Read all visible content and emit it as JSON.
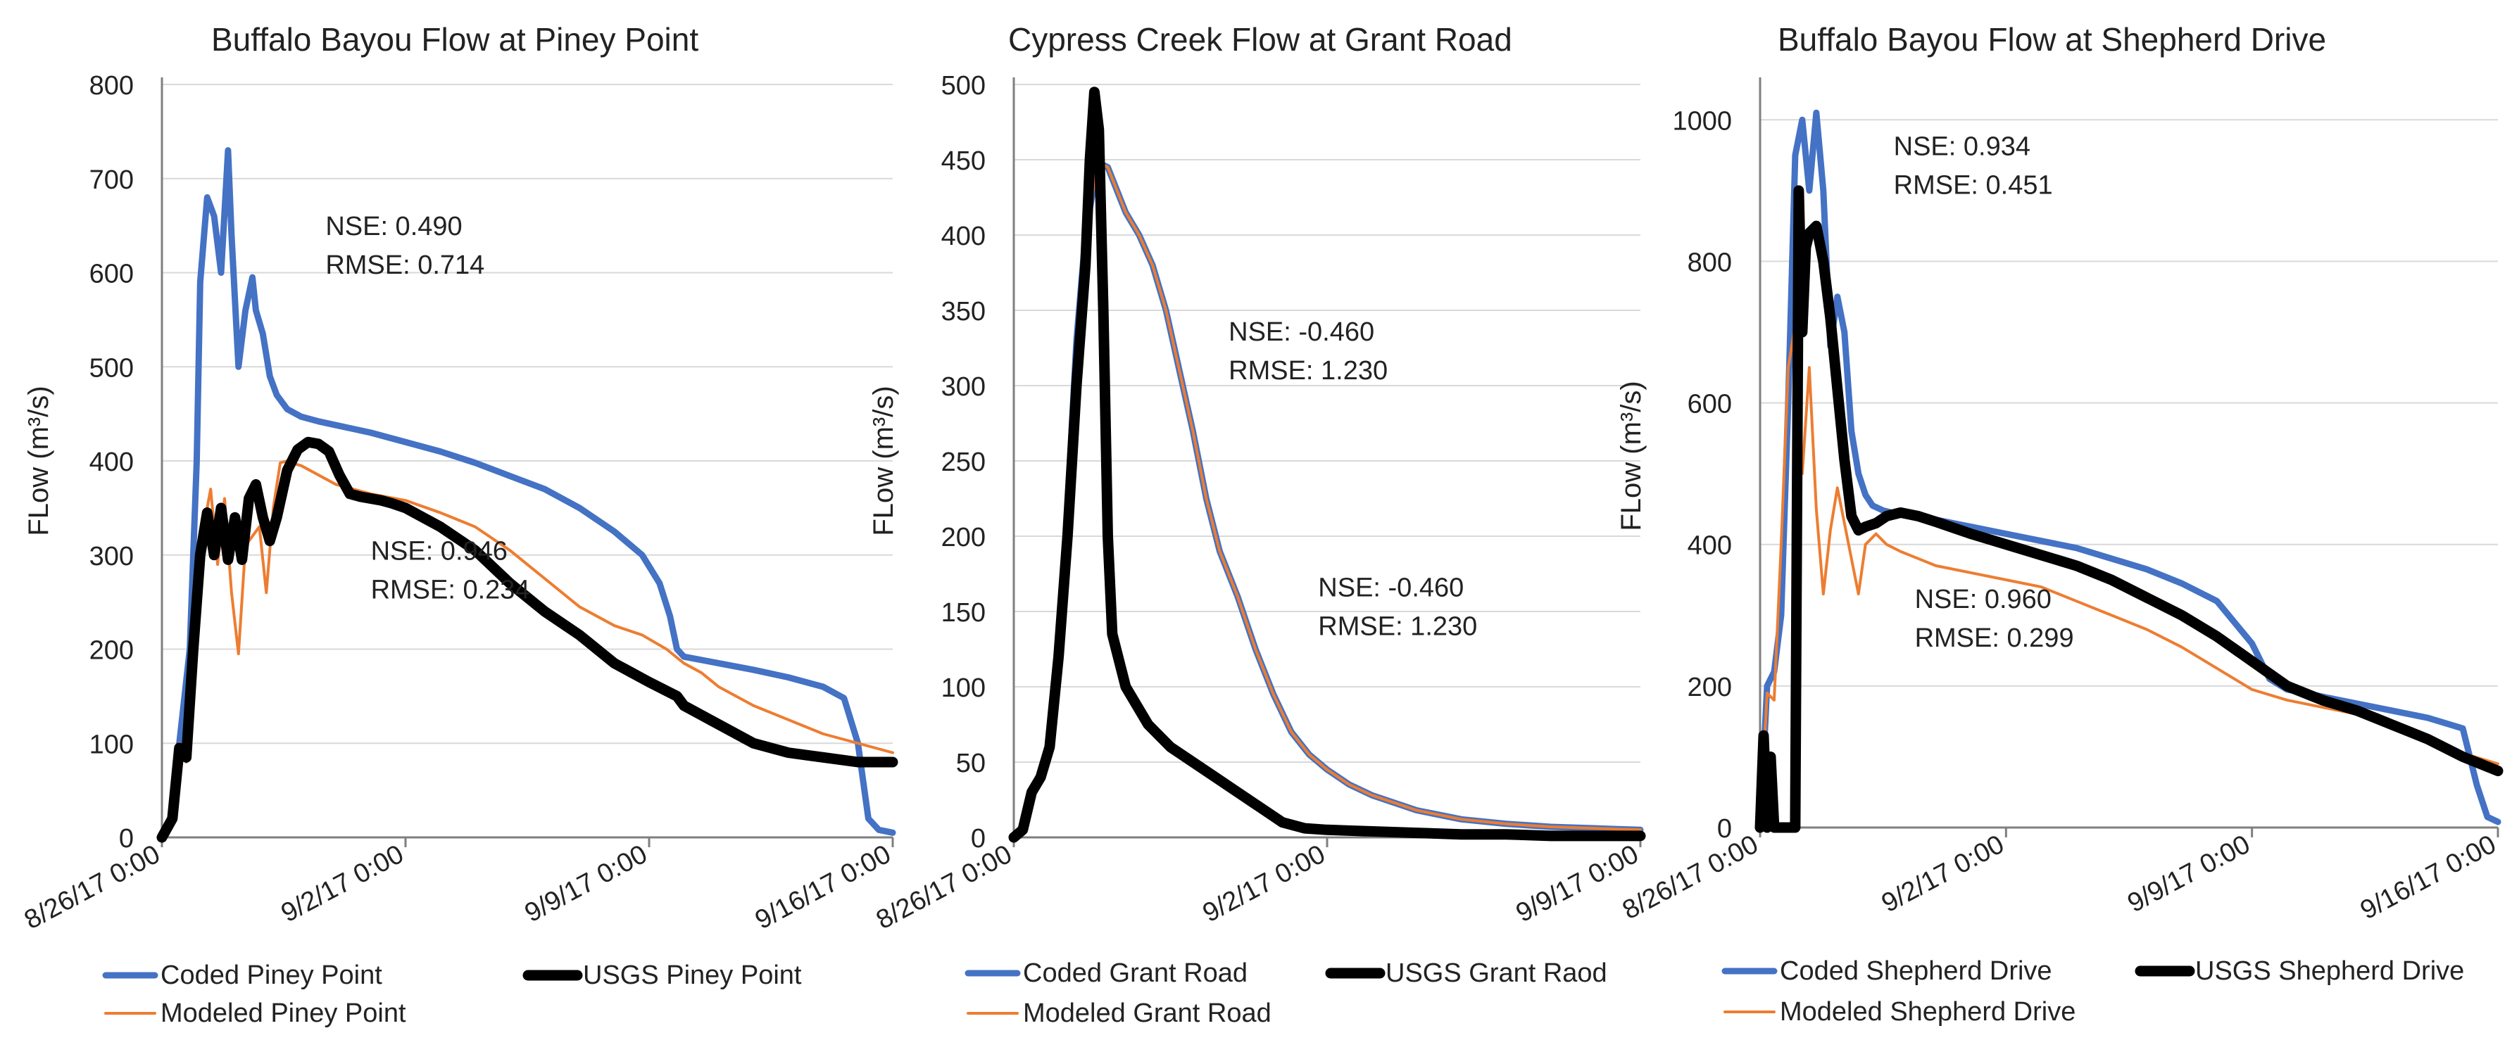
{
  "chart_data": [
    {
      "type": "line",
      "title": "Buffalo Bayou Flow at Piney Point",
      "ylabel": "FLow (m³/s)",
      "xlabel": "",
      "ylim": [
        0,
        800
      ],
      "yticks": [
        0,
        100,
        200,
        300,
        400,
        500,
        600,
        700,
        800
      ],
      "xlim": [
        "2017-08-26 00:00",
        "2017-09-16 00:00"
      ],
      "xticks": [
        "8/26/17 0:00",
        "9/2/17 0:00",
        "9/9/17 0:00",
        "9/16/17 0:00"
      ],
      "grid": "horizontal",
      "legend_position": "bottom",
      "annotations": [
        {
          "lines": [
            "NSE: 0.490",
            "RMSE: 0.714"
          ],
          "at": {
            "x": 4.7,
            "y": 640
          }
        },
        {
          "lines": [
            "NSE: 0.946",
            "RMSE: 0.234"
          ],
          "at": {
            "x": 6.0,
            "y": 295
          }
        }
      ],
      "series": [
        {
          "name": "Coded Piney Point",
          "color": "#4472c4",
          "x": [
            0,
            0.3,
            0.5,
            0.8,
            1.0,
            1.1,
            1.3,
            1.5,
            1.7,
            1.9,
            2.0,
            2.2,
            2.4,
            2.6,
            2.7,
            2.9,
            3.1,
            3.3,
            3.6,
            4.0,
            4.5,
            5.0,
            6.0,
            7.0,
            8.0,
            9.0,
            10.0,
            11.0,
            12.0,
            13.0,
            13.8,
            14.3,
            14.6,
            14.8,
            15.0,
            16.0,
            17.0,
            18.0,
            19.0,
            19.6,
            20.0,
            20.3,
            20.6,
            21.0
          ],
          "y": [
            0,
            20,
            100,
            200,
            400,
            590,
            680,
            660,
            600,
            730,
            640,
            500,
            560,
            595,
            560,
            535,
            490,
            470,
            455,
            447,
            442,
            438,
            430,
            420,
            410,
            398,
            384,
            370,
            350,
            325,
            300,
            270,
            235,
            200,
            192,
            185,
            178,
            170,
            160,
            148,
            100,
            20,
            8,
            5
          ]
        },
        {
          "name": "USGS Piney Point",
          "color": "#000000",
          "x": [
            0,
            0.3,
            0.5,
            0.7,
            0.9,
            1.1,
            1.3,
            1.5,
            1.7,
            1.9,
            2.1,
            2.3,
            2.5,
            2.7,
            2.9,
            3.1,
            3.3,
            3.6,
            3.9,
            4.2,
            4.5,
            4.8,
            5.1,
            5.4,
            5.7,
            6.0,
            6.3,
            6.6,
            7.0,
            7.5,
            8.0,
            9.0,
            10.0,
            11.0,
            12.0,
            13.0,
            14.0,
            14.8,
            15.0,
            16.0,
            17.0,
            18.0,
            19.0,
            20.0,
            21.0
          ],
          "y": [
            0,
            20,
            95,
            85,
            200,
            300,
            345,
            300,
            350,
            295,
            340,
            295,
            360,
            375,
            340,
            315,
            340,
            390,
            412,
            420,
            418,
            410,
            385,
            365,
            362,
            360,
            358,
            355,
            350,
            340,
            330,
            305,
            270,
            240,
            215,
            185,
            165,
            150,
            140,
            120,
            100,
            90,
            85,
            80,
            80
          ]
        },
        {
          "name": "Modeled Piney Point",
          "color": "#ed7d31",
          "x": [
            0,
            0.3,
            0.5,
            0.7,
            0.9,
            1.1,
            1.2,
            1.4,
            1.6,
            1.8,
            2.0,
            2.2,
            2.4,
            2.6,
            2.8,
            3.0,
            3.2,
            3.4,
            3.6,
            3.8,
            4.0,
            4.5,
            5.0,
            6.0,
            7.0,
            8.0,
            9.0,
            10.0,
            11.0,
            12.0,
            13.0,
            13.8,
            14.5,
            15.0,
            15.5,
            16.0,
            17.0,
            18.0,
            19.0,
            20.0,
            21.0
          ],
          "y": [
            0,
            30,
            100,
            80,
            170,
            310,
            330,
            370,
            290,
            360,
            260,
            195,
            310,
            320,
            330,
            260,
            350,
            398,
            400,
            397,
            395,
            385,
            375,
            365,
            358,
            345,
            330,
            305,
            275,
            245,
            225,
            215,
            200,
            185,
            175,
            160,
            140,
            125,
            110,
            100,
            90
          ]
        }
      ],
      "legend": [
        {
          "label": "Coded Piney Point",
          "color": "#4472c4",
          "weight": "medium"
        },
        {
          "label": "USGS Piney Point",
          "color": "#000000",
          "weight": "heavy"
        },
        {
          "label": "Modeled Piney Point",
          "color": "#ed7d31",
          "weight": "thin"
        }
      ]
    },
    {
      "type": "line",
      "title": "Cypress Creek Flow at Grant Road",
      "ylabel": "FLow (m³/s)",
      "xlabel": "",
      "ylim": [
        0,
        500
      ],
      "yticks": [
        0,
        50,
        100,
        150,
        200,
        250,
        300,
        350,
        400,
        450,
        500
      ],
      "xlim": [
        "2017-08-26 00:00",
        "2017-09-09 00:00"
      ],
      "xticks": [
        "8/26/17 0:00",
        "9/2/17 0:00",
        "9/9/17 0:00"
      ],
      "grid": "horizontal",
      "legend_position": "bottom",
      "annotations": [
        {
          "lines": [
            "NSE: -0.460",
            "RMSE: 1.230"
          ],
          "at": {
            "x": 4.8,
            "y": 330
          }
        },
        {
          "lines": [
            "NSE: -0.460",
            "RMSE: 1.230"
          ],
          "at": {
            "x": 6.8,
            "y": 160
          }
        }
      ],
      "series": [
        {
          "name": "Coded Grant Road",
          "color": "#4472c4",
          "x": [
            0,
            0.2,
            0.4,
            0.6,
            0.8,
            1.0,
            1.2,
            1.4,
            1.6,
            1.8,
            1.9,
            2.1,
            2.3,
            2.5,
            2.8,
            3.1,
            3.4,
            3.7,
            4.0,
            4.3,
            4.6,
            5.0,
            5.4,
            5.8,
            6.2,
            6.6,
            7.0,
            7.5,
            8.0,
            9.0,
            10.0,
            11.0,
            12.0,
            13.0,
            14.0
          ],
          "y": [
            0,
            5,
            30,
            40,
            60,
            120,
            220,
            330,
            400,
            435,
            448,
            445,
            430,
            415,
            400,
            380,
            350,
            310,
            270,
            225,
            190,
            160,
            125,
            95,
            70,
            55,
            45,
            35,
            28,
            18,
            12,
            9,
            7,
            6,
            5
          ]
        },
        {
          "name": "USGS Grant Raod",
          "color": "#000000",
          "x": [
            0,
            0.2,
            0.4,
            0.6,
            0.8,
            1.0,
            1.2,
            1.4,
            1.6,
            1.7,
            1.8,
            1.9,
            2.0,
            2.1,
            2.2,
            2.5,
            3.0,
            3.5,
            4.0,
            4.5,
            5.0,
            5.5,
            6.0,
            6.5,
            7.0,
            8.0,
            9.0,
            10.0,
            11.0,
            12.0,
            13.0,
            14.0
          ],
          "y": [
            0,
            5,
            30,
            40,
            60,
            120,
            200,
            300,
            380,
            450,
            495,
            470,
            350,
            200,
            135,
            100,
            75,
            60,
            50,
            40,
            30,
            20,
            10,
            6,
            5,
            4,
            3,
            2,
            2,
            1,
            1,
            1
          ]
        },
        {
          "name": "Modeled Grant Road",
          "color": "#ed7d31",
          "x": [
            0,
            0.2,
            0.4,
            0.6,
            0.8,
            1.0,
            1.2,
            1.4,
            1.6,
            1.8,
            1.9,
            2.1,
            2.3,
            2.5,
            2.8,
            3.1,
            3.4,
            3.7,
            4.0,
            4.3,
            4.6,
            5.0,
            5.4,
            5.8,
            6.2,
            6.6,
            7.0,
            7.5,
            8.0,
            9.0,
            10.0,
            11.0,
            12.0,
            13.0,
            14.0
          ],
          "y": [
            0,
            5,
            30,
            40,
            60,
            120,
            220,
            330,
            400,
            435,
            448,
            445,
            430,
            415,
            400,
            380,
            350,
            310,
            270,
            225,
            190,
            160,
            125,
            95,
            70,
            55,
            45,
            35,
            28,
            18,
            12,
            9,
            7,
            6,
            5
          ]
        }
      ],
      "legend": [
        {
          "label": "Coded Grant Road",
          "color": "#4472c4",
          "weight": "medium"
        },
        {
          "label": "USGS Grant Raod",
          "color": "#000000",
          "weight": "heavy"
        },
        {
          "label": "Modeled Grant Road",
          "color": "#ed7d31",
          "weight": "thin"
        }
      ]
    },
    {
      "type": "line",
      "title": "Buffalo Bayou Flow at Shepherd Drive",
      "ylabel": "FLow (m³/s)",
      "xlabel": "",
      "ylim": [
        0,
        1050
      ],
      "yticks": [
        0,
        200,
        400,
        600,
        800,
        1000
      ],
      "xlim": [
        "2017-08-26 00:00",
        "2017-09-16 00:00"
      ],
      "xticks": [
        "8/26/17 0:00",
        "9/2/17 0:00",
        "9/9/17 0:00",
        "9/16/17 0:00"
      ],
      "grid": "horizontal",
      "legend_position": "bottom",
      "annotations": [
        {
          "lines": [
            "NSE: 0.934",
            "RMSE: 0.451"
          ],
          "at": {
            "x": 3.8,
            "y": 950
          }
        },
        {
          "lines": [
            "NSE: 0.960",
            "RMSE: 0.299"
          ],
          "at": {
            "x": 4.4,
            "y": 310
          }
        }
      ],
      "series": [
        {
          "name": "Coded Shepherd Drive",
          "color": "#4472c4",
          "x": [
            0,
            0.2,
            0.4,
            0.6,
            0.8,
            1.0,
            1.2,
            1.4,
            1.6,
            1.8,
            2.0,
            2.2,
            2.4,
            2.6,
            2.8,
            3.0,
            3.2,
            3.5,
            4.0,
            5.0,
            6.0,
            7.0,
            8.0,
            9.0,
            10.0,
            11.0,
            12.0,
            13.0,
            14.0,
            14.5,
            15.0,
            15.5,
            16.0,
            17.0,
            18.0,
            19.0,
            20.0,
            20.4,
            20.7,
            21.0
          ],
          "y": [
            0,
            200,
            220,
            300,
            600,
            950,
            1000,
            900,
            1010,
            900,
            680,
            750,
            700,
            560,
            500,
            470,
            455,
            448,
            442,
            435,
            425,
            415,
            405,
            395,
            380,
            365,
            345,
            320,
            260,
            210,
            195,
            190,
            185,
            175,
            165,
            155,
            140,
            60,
            15,
            8
          ]
        },
        {
          "name": "USGS Shepherd Drive",
          "color": "#000000",
          "x": [
            0,
            0.1,
            0.2,
            0.3,
            0.4,
            0.5,
            0.6,
            1.0,
            1.1,
            1.2,
            1.3,
            1.4,
            1.6,
            1.8,
            2.0,
            2.2,
            2.4,
            2.6,
            2.8,
            3.0,
            3.3,
            3.6,
            4.0,
            4.5,
            5.0,
            6.0,
            7.0,
            8.0,
            9.0,
            10.0,
            11.0,
            12.0,
            13.0,
            14.0,
            15.0,
            16.0,
            17.0,
            18.0,
            19.0,
            20.0,
            21.0
          ],
          "y": [
            0,
            130,
            0,
            100,
            0,
            0,
            0,
            0,
            900,
            700,
            820,
            840,
            850,
            800,
            720,
            620,
            520,
            440,
            420,
            425,
            430,
            440,
            445,
            440,
            432,
            415,
            400,
            385,
            370,
            350,
            325,
            300,
            270,
            235,
            200,
            180,
            165,
            145,
            125,
            100,
            80
          ]
        },
        {
          "name": "Modeled Shepherd Drive",
          "color": "#ed7d31",
          "x": [
            0,
            0.2,
            0.4,
            0.6,
            0.8,
            1.0,
            1.2,
            1.4,
            1.6,
            1.8,
            2.0,
            2.2,
            2.4,
            2.6,
            2.8,
            3.0,
            3.3,
            3.6,
            4.0,
            4.5,
            5.0,
            6.0,
            7.0,
            8.0,
            9.0,
            10.0,
            11.0,
            12.0,
            13.0,
            14.0,
            15.0,
            16.0,
            17.0,
            18.0,
            19.0,
            20.0,
            21.0
          ],
          "y": [
            0,
            190,
            180,
            400,
            650,
            710,
            500,
            650,
            450,
            330,
            420,
            480,
            430,
            380,
            330,
            400,
            415,
            400,
            390,
            380,
            370,
            360,
            350,
            340,
            320,
            300,
            280,
            255,
            225,
            195,
            180,
            170,
            160,
            140,
            120,
            105,
            90
          ]
        }
      ],
      "legend": [
        {
          "label": "Coded Shepherd Drive",
          "color": "#4472c4",
          "weight": "medium"
        },
        {
          "label": "USGS Shepherd Drive",
          "color": "#000000",
          "weight": "heavy"
        },
        {
          "label": "Modeled Shepherd Drive",
          "color": "#ed7d31",
          "weight": "thin"
        }
      ]
    }
  ]
}
